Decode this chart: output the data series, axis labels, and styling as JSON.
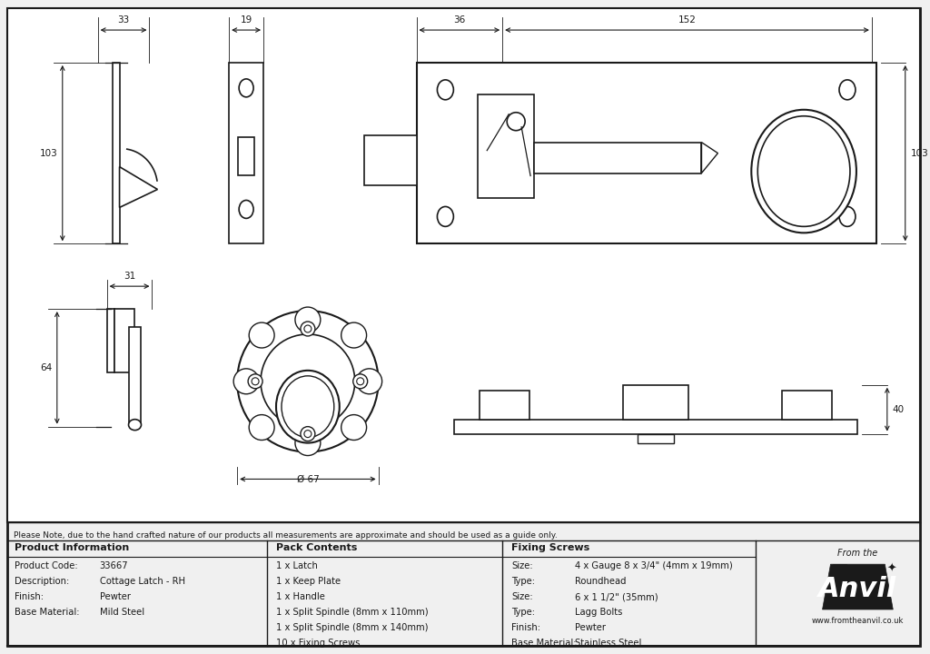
{
  "bg_color": "#f0f0f0",
  "draw_bg": "#ffffff",
  "line_color": "#1a1a1a",
  "note_text": "Please Note, due to the hand crafted nature of our products all measurements are approximate and should be used as a guide only.",
  "product_info": {
    "header": "Product Information",
    "rows": [
      [
        "Product Code:",
        "33667"
      ],
      [
        "Description:",
        "Cottage Latch - RH"
      ],
      [
        "Finish:",
        "Pewter"
      ],
      [
        "Base Material:",
        "Mild Steel"
      ]
    ]
  },
  "pack_contents": {
    "header": "Pack Contents",
    "items": [
      "1 x Latch",
      "1 x Keep Plate",
      "1 x Handle",
      "1 x Split Spindle (8mm x 110mm)",
      "1 x Split Spindle (8mm x 140mm)",
      "10 x Fixing Screws"
    ]
  },
  "fixing_screws": {
    "header": "Fixing Screws",
    "rows": [
      [
        "Size:",
        "4 x Gauge 8 x 3/4\" (4mm x 19mm)"
      ],
      [
        "Type:",
        "Roundhead"
      ],
      [
        "Size:",
        "6 x 1 1/2\" (35mm)"
      ],
      [
        "Type:",
        "Lagg Bolts"
      ],
      [
        "Finish:",
        "Pewter"
      ],
      [
        "Base Material:",
        "Stainless Steel"
      ]
    ]
  }
}
